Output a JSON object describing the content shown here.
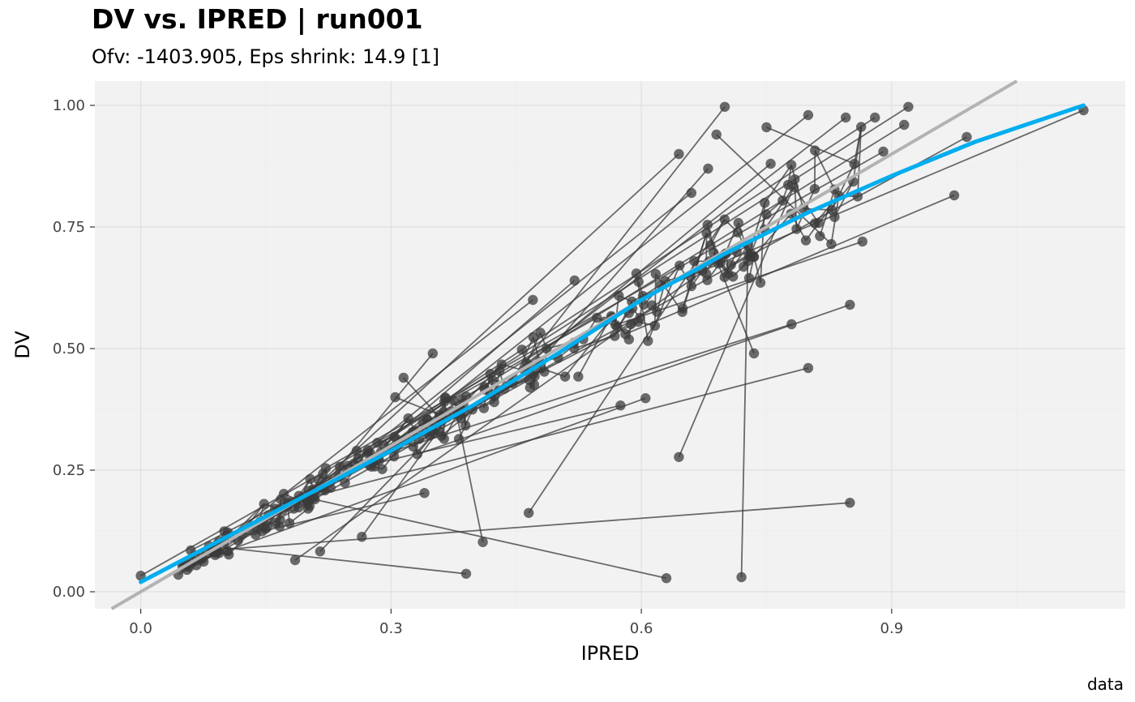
{
  "chart_data": {
    "type": "scatter",
    "title": "DV vs. IPRED | run001",
    "subtitle": "Ofv: -1403.905, Eps shrink: 14.9 [1]",
    "caption": "data",
    "xlabel": "IPRED",
    "ylabel": "DV",
    "xlim": [
      -0.055,
      1.18
    ],
    "ylim": [
      -0.035,
      1.05
    ],
    "x_ticks": [
      0.0,
      0.3,
      0.6,
      0.9
    ],
    "x_tick_labels": [
      "0.0",
      "0.3",
      "0.6",
      "0.9"
    ],
    "y_ticks": [
      0.0,
      0.25,
      0.5,
      0.75,
      1.0
    ],
    "y_tick_labels": [
      "0.00",
      "0.25",
      "0.50",
      "0.75",
      "1.00"
    ],
    "grid": true,
    "colors": {
      "panel": "#f2f2f2",
      "grid": "#e0e0e0",
      "points": "#3b3b3b",
      "identity_line": "#b3b3b3",
      "smooth": "#00aeef"
    },
    "reference_line": {
      "name": "identity",
      "slope": 1,
      "intercept": 0
    },
    "smooth": {
      "x": [
        0.0,
        0.1,
        0.2,
        0.3,
        0.4,
        0.5,
        0.6,
        0.7,
        0.8,
        0.9,
        1.0,
        1.13
      ],
      "y": [
        0.02,
        0.11,
        0.2,
        0.29,
        0.385,
        0.49,
        0.6,
        0.695,
        0.78,
        0.855,
        0.925,
        1.0
      ]
    },
    "outlier_points": [
      {
        "x": 0.0,
        "y": 0.033
      },
      {
        "x": 0.045,
        "y": 0.035
      },
      {
        "x": 0.06,
        "y": 0.085
      },
      {
        "x": 0.185,
        "y": 0.065
      },
      {
        "x": 0.215,
        "y": 0.083
      },
      {
        "x": 0.265,
        "y": 0.113
      },
      {
        "x": 0.34,
        "y": 0.203
      },
      {
        "x": 0.39,
        "y": 0.037
      },
      {
        "x": 0.41,
        "y": 0.102
      },
      {
        "x": 0.465,
        "y": 0.162
      },
      {
        "x": 0.63,
        "y": 0.028
      },
      {
        "x": 0.645,
        "y": 0.277
      },
      {
        "x": 0.72,
        "y": 0.03
      },
      {
        "x": 0.85,
        "y": 0.183
      },
      {
        "x": 0.8,
        "y": 0.46
      },
      {
        "x": 0.735,
        "y": 0.49
      },
      {
        "x": 0.605,
        "y": 0.398
      },
      {
        "x": 0.575,
        "y": 0.383
      },
      {
        "x": 0.35,
        "y": 0.49
      },
      {
        "x": 0.305,
        "y": 0.4
      },
      {
        "x": 0.315,
        "y": 0.44
      },
      {
        "x": 0.47,
        "y": 0.6
      },
      {
        "x": 0.52,
        "y": 0.64
      },
      {
        "x": 0.645,
        "y": 0.9
      },
      {
        "x": 0.7,
        "y": 0.997
      },
      {
        "x": 0.92,
        "y": 0.997
      },
      {
        "x": 1.13,
        "y": 0.99
      },
      {
        "x": 0.99,
        "y": 0.935
      },
      {
        "x": 0.975,
        "y": 0.815
      },
      {
        "x": 0.865,
        "y": 0.72
      },
      {
        "x": 0.85,
        "y": 0.59
      },
      {
        "x": 0.88,
        "y": 0.975
      },
      {
        "x": 0.8,
        "y": 0.98
      },
      {
        "x": 0.75,
        "y": 0.955
      },
      {
        "x": 0.69,
        "y": 0.94
      },
      {
        "x": 0.68,
        "y": 0.87
      },
      {
        "x": 0.66,
        "y": 0.82
      },
      {
        "x": 0.915,
        "y": 0.96
      },
      {
        "x": 0.89,
        "y": 0.905
      },
      {
        "x": 0.845,
        "y": 0.975
      },
      {
        "x": 0.755,
        "y": 0.88
      },
      {
        "x": 0.78,
        "y": 0.55
      }
    ]
  }
}
